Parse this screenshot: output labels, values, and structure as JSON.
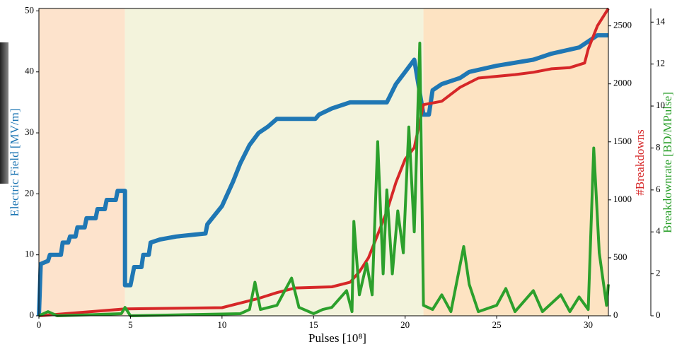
{
  "chart_data": {
    "type": "line",
    "xlabel": "Pulses [10⁸]",
    "ylabel": "Electric Field [MV/m]",
    "y2label": "#Breakdowns",
    "y3label": "Breakdownrate [BD/MPulse]",
    "xlim": [
      0,
      31.1
    ],
    "xticks": [
      0,
      5,
      10,
      15,
      20,
      25,
      30
    ],
    "ylim": [
      0,
      50.4
    ],
    "yticks": [
      0,
      10,
      20,
      30,
      40,
      50
    ],
    "y2lim": [
      0,
      2650
    ],
    "y2ticks": [
      0,
      500,
      1000,
      1500,
      2000,
      2500
    ],
    "y3lim": [
      0,
      14.65
    ],
    "y3ticks": [
      0,
      2,
      4,
      6,
      8,
      10,
      12,
      14
    ],
    "spans": [
      {
        "xmin": 0,
        "xmax": 4.7,
        "color": "#fde3cc"
      },
      {
        "xmin": 4.7,
        "xmax": 21,
        "color": "#f3f3dc"
      },
      {
        "xmin": 21,
        "xmax": 31.1,
        "color": "#fde3c2"
      }
    ],
    "series": [
      {
        "axis": "y",
        "color": "#1f77b4",
        "width": 6,
        "x": [
          0,
          0.1,
          0.5,
          0.6,
          1.2,
          1.3,
          1.6,
          1.7,
          2,
          2.1,
          2.5,
          2.6,
          3.1,
          3.2,
          3.6,
          3.7,
          4.2,
          4.3,
          4.7,
          4.7,
          5,
          5.2,
          5.6,
          5.7,
          6,
          6.1,
          6.6,
          7.5,
          9.1,
          9.2,
          10,
          10.3,
          10.6,
          11,
          11.5,
          12,
          12.5,
          13,
          15.1,
          15.3,
          16,
          17,
          19,
          19.5,
          20,
          20.5,
          21,
          21.3,
          21.5,
          22,
          23,
          23.5,
          25,
          27,
          28,
          29.5,
          30,
          30.5,
          31.1
        ],
        "values": [
          0,
          8.5,
          9,
          10,
          10,
          12,
          12,
          13,
          13,
          14.5,
          14.5,
          16,
          16,
          17.5,
          17.5,
          19,
          19,
          20.5,
          20.5,
          5,
          5,
          8,
          8,
          10,
          10,
          12,
          12.5,
          13,
          13.5,
          15,
          18,
          20,
          22,
          25,
          28,
          30,
          31,
          32.3,
          32.3,
          33,
          34,
          35,
          35,
          38,
          40,
          42,
          33,
          33,
          37,
          38,
          39,
          40,
          41,
          42,
          43,
          44,
          45,
          46,
          46
        ]
      },
      {
        "axis": "y2",
        "color": "#d62728",
        "width": 4,
        "x": [
          0,
          4.7,
          10,
          11,
          12,
          13,
          14,
          16,
          17,
          17.5,
          18,
          18.5,
          19,
          19.5,
          20,
          20.5,
          21,
          22,
          23,
          24,
          26,
          27,
          28,
          29,
          29.8,
          30,
          30.5,
          31.1
        ],
        "values": [
          0,
          60,
          70,
          110,
          150,
          200,
          240,
          250,
          290,
          380,
          500,
          700,
          900,
          1150,
          1350,
          1450,
          1820,
          1850,
          1970,
          2050,
          2080,
          2100,
          2130,
          2140,
          2180,
          2300,
          2500,
          2650
        ]
      },
      {
        "axis": "y3",
        "color": "#2ca02c",
        "width": 4,
        "x": [
          0,
          0.5,
          1,
          4.5,
          4.7,
          5,
          11,
          11.5,
          11.8,
          12.1,
          13,
          13.8,
          14.2,
          15,
          15.5,
          16,
          16.8,
          17.1,
          17.2,
          17.5,
          17.9,
          18.2,
          18.5,
          18.8,
          19,
          19.3,
          19.6,
          19.9,
          20.2,
          20.5,
          20.8,
          21,
          21.5,
          22,
          22.5,
          23.2,
          23.5,
          24,
          25,
          25.5,
          26,
          27,
          27.5,
          28.5,
          29,
          29.5,
          30,
          30.3,
          30.6,
          31,
          31.1
        ],
        "values": [
          0,
          0.2,
          0,
          0.1,
          0.4,
          0,
          0.1,
          0.3,
          1.6,
          0.3,
          0.5,
          1.8,
          0.4,
          0.1,
          0.3,
          0.4,
          1.2,
          0.2,
          4.5,
          1,
          2.5,
          1,
          8.3,
          2,
          6,
          2,
          5,
          3,
          9,
          4,
          13,
          0.5,
          0.3,
          1,
          0.2,
          3.3,
          1.5,
          0.2,
          0.5,
          1.3,
          0.2,
          1.2,
          0.2,
          1,
          0.2,
          0.9,
          0.3,
          8,
          3,
          0.5,
          1.5
        ]
      }
    ]
  }
}
